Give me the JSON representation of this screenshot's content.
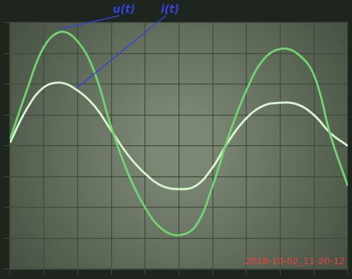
{
  "chart_data": {
    "type": "line",
    "x": [
      0,
      0.5,
      1,
      1.5,
      2,
      2.5,
      3,
      3.5,
      4,
      4.5,
      5,
      5.5,
      6,
      6.5,
      7,
      7.5,
      8,
      8.5,
      9,
      9.5,
      10
    ],
    "series": [
      {
        "name": "u(t)",
        "color": "#6fd46f",
        "values": [
          0.2,
          1.8,
          3.2,
          3.7,
          3.4,
          2.4,
          0.6,
          -0.9,
          -2.0,
          -2.7,
          -2.9,
          -2.6,
          -1.3,
          0.4,
          1.8,
          2.8,
          3.15,
          3.0,
          2.3,
          0.3,
          -1.3
        ]
      },
      {
        "name": "i(t)",
        "color": "#d6f5cf",
        "values": [
          0.1,
          1.2,
          1.9,
          2.05,
          1.8,
          1.3,
          0.5,
          -0.3,
          -0.9,
          -1.3,
          -1.4,
          -1.3,
          -0.7,
          0.2,
          0.9,
          1.3,
          1.4,
          1.35,
          1.0,
          0.4,
          0.0
        ]
      }
    ],
    "xlim": [
      0,
      10
    ],
    "xticks": [
      0,
      1,
      2,
      3,
      4,
      5,
      6,
      7,
      8,
      9,
      10
    ],
    "ylim": [
      -4,
      4
    ],
    "yticks": [
      -4,
      -3,
      -2,
      -1,
      0,
      1,
      2,
      3,
      4
    ],
    "grid": true,
    "tick_labels": false,
    "annotations": [
      {
        "text": "2018-10-02_11-20-12",
        "color": "#ff3a3a"
      }
    ]
  }
}
